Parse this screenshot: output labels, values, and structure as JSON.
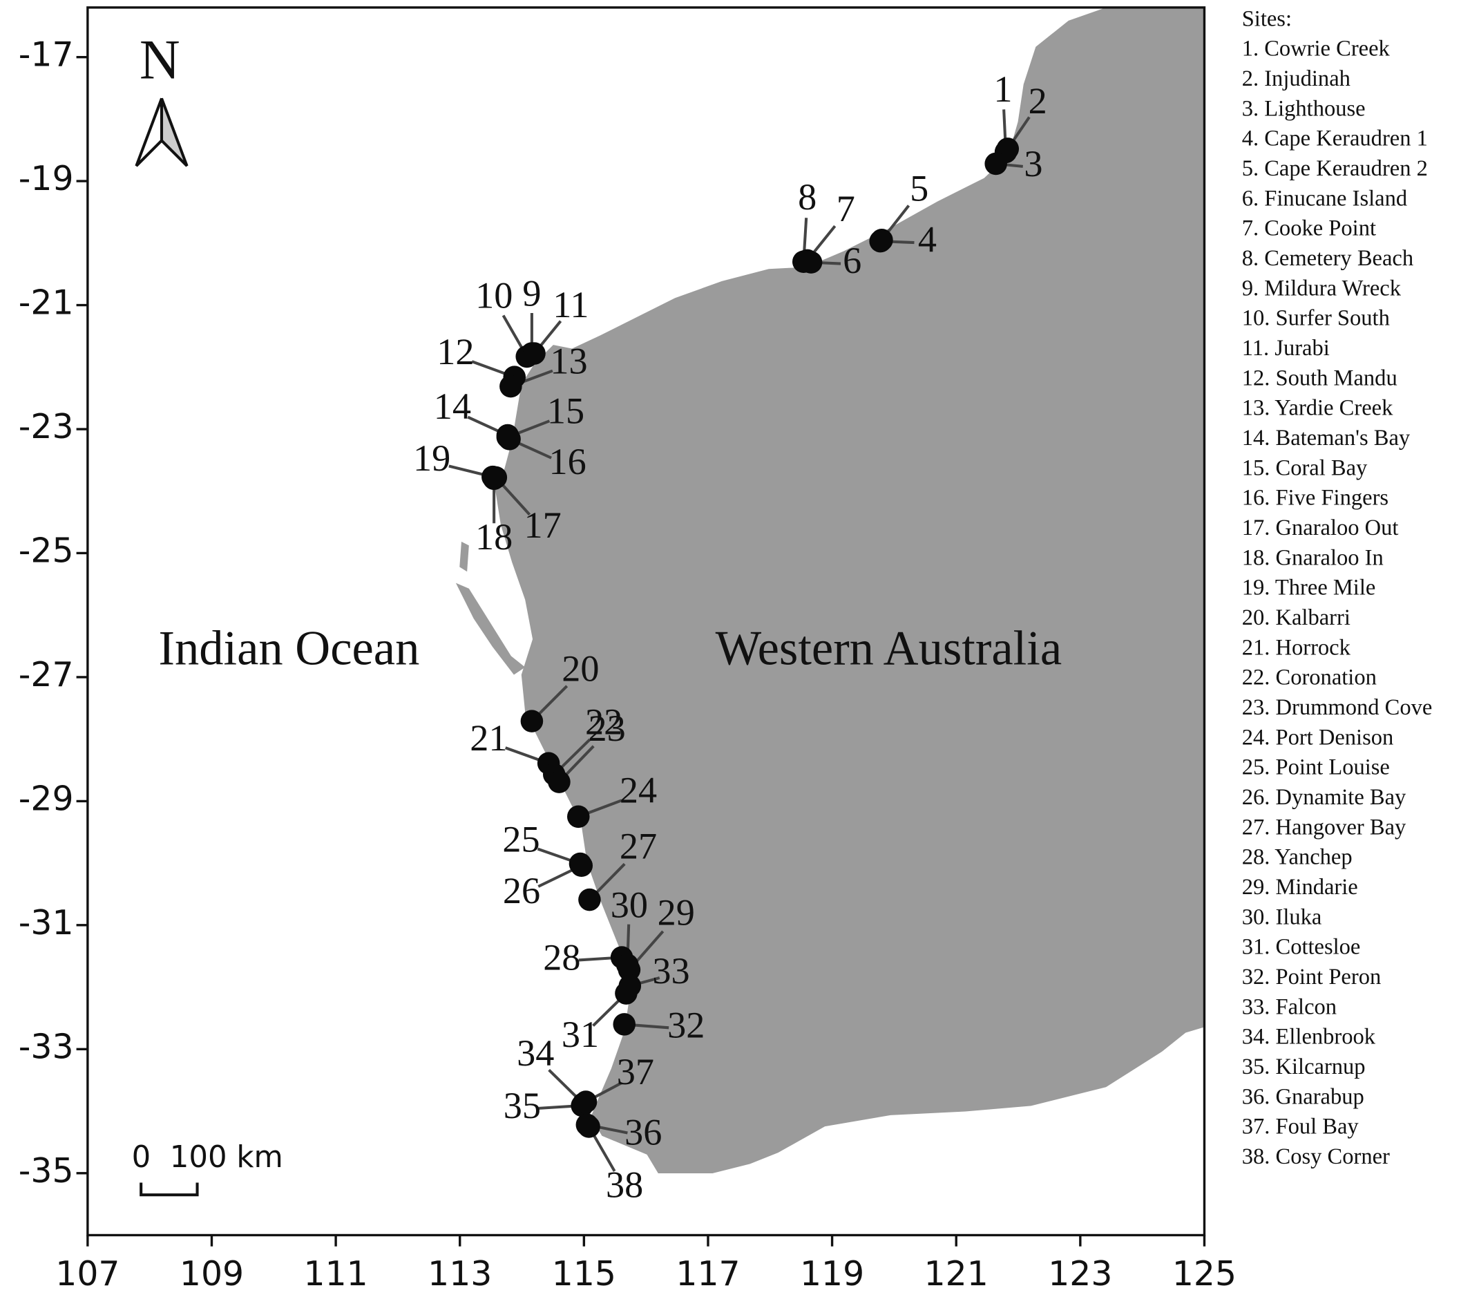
{
  "map": {
    "xlim": [
      107,
      125
    ],
    "ylim": [
      -36,
      -16.2
    ],
    "xticks": [
      107,
      109,
      111,
      113,
      115,
      117,
      119,
      121,
      123,
      125
    ],
    "yticks": [
      -17,
      -19,
      -21,
      -23,
      -25,
      -27,
      -29,
      -31,
      -33,
      -35
    ],
    "north_label": "N",
    "scale_label": "0  100 km",
    "ocean_label": "Indian Ocean",
    "land_label": "Western Australia",
    "land_color": "#9b9b9b",
    "site_color": "#0a0a0a",
    "legend_title": "Sites:",
    "sites": [
      {
        "label": "1",
        "legend": "1.   Cowrie Creek",
        "lon": 121.8,
        "lat": -18.53
      },
      {
        "label": "2",
        "legend": "2.   Injudinah",
        "lon": 121.83,
        "lat": -18.48
      },
      {
        "label": "3",
        "legend": "3.   Lighthouse",
        "lon": 121.64,
        "lat": -18.72
      },
      {
        "label": "4",
        "legend": "4.   Cape Keraudren 1",
        "lon": 119.78,
        "lat": -19.97
      },
      {
        "label": "5",
        "legend": "5.   Cape Keraudren 2",
        "lon": 119.8,
        "lat": -19.95
      },
      {
        "label": "6",
        "legend": "6.   Finucane Island",
        "lon": 118.66,
        "lat": -20.31
      },
      {
        "label": "7",
        "legend": "7.   Cooke Point",
        "lon": 118.6,
        "lat": -20.28
      },
      {
        "label": "8",
        "legend": "8.   Cemetery Beach",
        "lon": 118.54,
        "lat": -20.3
      },
      {
        "label": "9",
        "legend": "9.   Mildura Wreck",
        "lon": 114.16,
        "lat": -21.78
      },
      {
        "label": "10",
        "legend": "10. Surfer South",
        "lon": 114.08,
        "lat": -21.83
      },
      {
        "label": "11",
        "legend": "11. Jurabi",
        "lon": 114.2,
        "lat": -21.78
      },
      {
        "label": "12",
        "legend": "12. South Mandu",
        "lon": 113.88,
        "lat": -22.16
      },
      {
        "label": "13",
        "legend": "13. Yardie Creek",
        "lon": 113.82,
        "lat": -22.31
      },
      {
        "label": "14",
        "legend": "14. Bateman's Bay",
        "lon": 113.77,
        "lat": -23.1
      },
      {
        "label": "15",
        "legend": "15. Coral Bay",
        "lon": 113.77,
        "lat": -23.13
      },
      {
        "label": "16",
        "legend": "16. Five Fingers",
        "lon": 113.8,
        "lat": -23.16
      },
      {
        "label": "17",
        "legend": "17. Gnaraloo Out",
        "lon": 113.58,
        "lat": -23.78
      },
      {
        "label": "18",
        "legend": "18. Gnaraloo In",
        "lon": 113.55,
        "lat": -23.8
      },
      {
        "label": "19",
        "legend": "19. Three Mile",
        "lon": 113.53,
        "lat": -23.77
      },
      {
        "label": "20",
        "legend": "20. Kalbarri",
        "lon": 114.16,
        "lat": -27.71
      },
      {
        "label": "21",
        "legend": "21. Horrock",
        "lon": 114.43,
        "lat": -28.39
      },
      {
        "label": "22",
        "legend": "22. Coronation",
        "lon": 114.52,
        "lat": -28.57
      },
      {
        "label": "23",
        "legend": "23. Drummond Cove",
        "lon": 114.6,
        "lat": -28.69
      },
      {
        "label": "24",
        "legend": "24. Port Denison",
        "lon": 114.91,
        "lat": -29.25
      },
      {
        "label": "25",
        "legend": "25. Point Louise",
        "lon": 114.94,
        "lat": -30.01
      },
      {
        "label": "26",
        "legend": "26. Dynamite Bay",
        "lon": 114.96,
        "lat": -30.04
      },
      {
        "label": "27",
        "legend": "27. Hangover Bay",
        "lon": 115.09,
        "lat": -30.59
      },
      {
        "label": "28",
        "legend": "28. Yanchep",
        "lon": 115.61,
        "lat": -31.52
      },
      {
        "label": "29",
        "legend": "29. Mindarie",
        "lon": 115.73,
        "lat": -31.72
      },
      {
        "label": "30",
        "legend": "30. Iluka",
        "lon": 115.7,
        "lat": -31.64
      },
      {
        "label": "31",
        "legend": "31. Cottesloe",
        "lon": 115.68,
        "lat": -32.1
      },
      {
        "label": "32",
        "legend": "32. Point Peron",
        "lon": 115.65,
        "lat": -32.6
      },
      {
        "label": "33",
        "legend": "33. Falcon",
        "lon": 115.74,
        "lat": -31.98
      },
      {
        "label": "34",
        "legend": "34. Ellenbrook",
        "lon": 114.99,
        "lat": -33.88
      },
      {
        "label": "35",
        "legend": "35. Kilcarnup",
        "lon": 114.97,
        "lat": -33.91
      },
      {
        "label": "36",
        "legend": "36. Gnarabup",
        "lon": 115.05,
        "lat": -34.22
      },
      {
        "label": "37",
        "legend": "37. Foul Bay",
        "lon": 115.03,
        "lat": -33.85
      },
      {
        "label": "38",
        "legend": "38. Cosy Corner",
        "lon": 115.08,
        "lat": -34.25
      }
    ]
  }
}
